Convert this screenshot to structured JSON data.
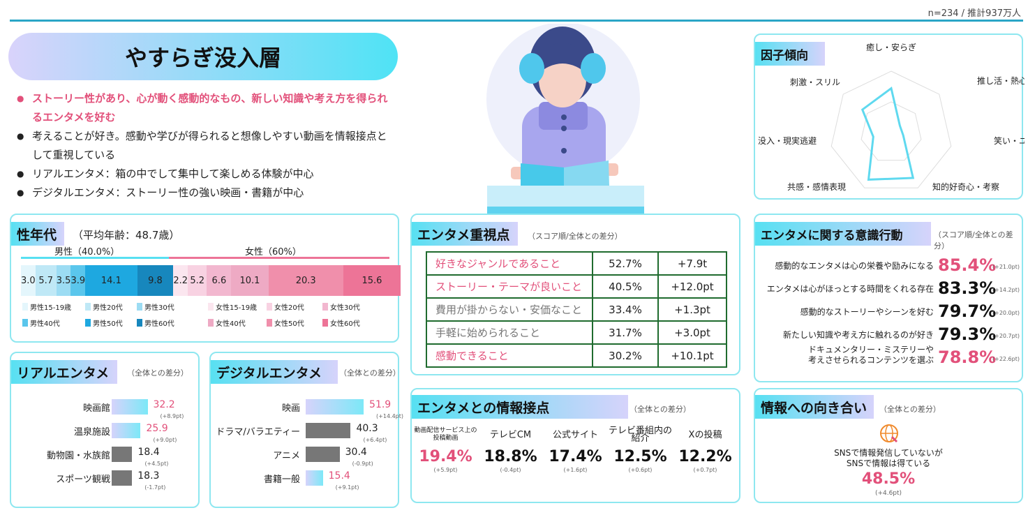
{
  "sample": "n=234 / 推計937万人",
  "title": "やすらぎ没入層",
  "bullets": [
    {
      "text": "ストーリー性があり、心が動く感動的なもの、新しい知識や考え方を得られるエンタメを好む",
      "highlight": true
    },
    {
      "text": "考えることが好き。感動や学びが得られると想像しやすい動画を情報接点として重視している",
      "highlight": false
    },
    {
      "text": "リアルエンタメ：箱の中でして集中して楽しめる体験が中心",
      "highlight": false
    },
    {
      "text": "デジタルエンタメ：ストーリー性の強い映画・書籍が中心",
      "highlight": false
    }
  ],
  "factor": {
    "title": "因子傾向",
    "labels": [
      "癒し・安らぎ",
      "推し活・熱心な応援",
      "笑い・ユーモア",
      "知的好奇心・考察",
      "共感・感情表現",
      "没入・現実逃避",
      "刺激・スリル"
    ],
    "values": [
      0.72,
      0.18,
      0.2,
      0.82,
      0.85,
      0.3,
      0.6
    ]
  },
  "age": {
    "title": "性年代",
    "avg": "（平均年齢：48.7歳）",
    "male": "男性（40.0%）",
    "female": "女性（60%）",
    "segments": [
      {
        "label": "男性15-19歳",
        "value": "3.0",
        "color": "#e4f6fc"
      },
      {
        "label": "男性20代",
        "value": "5.7",
        "color": "#bfe8f6"
      },
      {
        "label": "男性30代",
        "value": "3.5",
        "color": "#9cdcf3"
      },
      {
        "label": "男性40代",
        "value": "3.9",
        "color": "#5ac6ec"
      },
      {
        "label": "男性50代",
        "value": "14.1",
        "color": "#1ea8e0"
      },
      {
        "label": "男性60代",
        "value": "9.8",
        "color": "#1787bd"
      },
      {
        "label": "女性15-19歳",
        "value": "2.2",
        "color": "#fbe6ef"
      },
      {
        "label": "女性20代",
        "value": "5.2",
        "color": "#f8d2e2"
      },
      {
        "label": "女性30代",
        "value": "6.6",
        "color": "#f2b7cf"
      },
      {
        "label": "女性40代",
        "value": "10.1",
        "color": "#eeaac4"
      },
      {
        "label": "女性50代",
        "value": "20.3",
        "color": "#f08fab"
      },
      {
        "label": "女性60代",
        "value": "15.6",
        "color": "#ed7497"
      }
    ]
  },
  "entame": {
    "title": "エンタメ重視点",
    "sub": "（スコア順/全体との差分）",
    "rows": [
      {
        "item": "好きなジャンルであること",
        "score": "52.7%",
        "diff": "+7.9t",
        "hl": true
      },
      {
        "item": "ストーリー・テーマが良いこと",
        "score": "40.5%",
        "diff": "+12.0pt",
        "hl": true
      },
      {
        "item": "費用が掛からない・安価なこと",
        "score": "33.4%",
        "diff": "+1.3pt",
        "hl": false
      },
      {
        "item": "手軽に始められること",
        "score": "31.7%",
        "diff": "+3.0pt",
        "hl": false
      },
      {
        "item": "感動できること",
        "score": "30.2%",
        "diff": "+10.1pt",
        "hl": true
      }
    ]
  },
  "ishiki": {
    "title": "エンタメに関する意識行動",
    "sub": "（スコア順/全体との差分）",
    "rows": [
      {
        "l1": "感動的なエンタメは心の栄養や励みになる",
        "l2": "",
        "score": "85.4%",
        "diff": "(+21.0pt)",
        "hl": true
      },
      {
        "l1": "エンタメは心がほっとする時間をくれる存在",
        "l2": "",
        "score": "83.3%",
        "diff": "(+14.2pt)",
        "hl": false
      },
      {
        "l1": "感動的なストーリーやシーンを好む",
        "l2": "",
        "score": "79.7%",
        "diff": "(+20.0pt)",
        "hl": false
      },
      {
        "l1": "新たしい知識や考え方に触れるのが好き",
        "l2": "",
        "score": "79.3%",
        "diff": "(+20.7pt)",
        "hl": false
      },
      {
        "l1": "ドキュメンタリー・ミステリーや",
        "l2": "考えさせられるコンテンツを選ぶ",
        "score": "78.8%",
        "diff": "(+22.6pt)",
        "hl": true
      }
    ]
  },
  "real": {
    "title": "リアルエンタメ",
    "sub": "（全体との差分）",
    "items": [
      {
        "label": "映画館",
        "value": "32.2",
        "diff": "(+8.9pt)",
        "hl": true,
        "n": 32.2
      },
      {
        "label": "温泉施設",
        "value": "25.9",
        "diff": "(+9.0pt)",
        "hl": true,
        "n": 25.9
      },
      {
        "label": "動物園・水族館",
        "value": "18.4",
        "diff": "(+4.5pt)",
        "hl": false,
        "n": 18.4
      },
      {
        "label": "スポーツ観戦",
        "value": "18.3",
        "diff": "(-1.7pt)",
        "hl": false,
        "n": 18.3
      }
    ]
  },
  "digital": {
    "title": "デジタルエンタメ",
    "sub": "（全体との差分）",
    "items": [
      {
        "label": "映画",
        "value": "51.9",
        "diff": "(+14.4pt)",
        "hl": true,
        "n": 51.9
      },
      {
        "label": "ドラマ/バラエティー",
        "value": "40.3",
        "diff": "(+6.4pt)",
        "hl": false,
        "n": 40.3
      },
      {
        "label": "アニメ",
        "value": "30.4",
        "diff": "(-0.9pt)",
        "hl": false,
        "n": 30.4
      },
      {
        "label": "書籍一般",
        "value": "15.4",
        "diff": "(+9.1pt)",
        "hl": true,
        "n": 15.4
      }
    ]
  },
  "joho": {
    "title": "エンタメとの情報接点",
    "sub": "（全体との差分）",
    "items": [
      {
        "label": "動画配信サービス上の投稿動画",
        "value": "19.4%",
        "diff": "(+5.9pt)",
        "hl": true
      },
      {
        "label": "テレビCM",
        "value": "18.8%",
        "diff": "(-0.4pt)",
        "hl": false
      },
      {
        "label": "公式サイト",
        "value": "17.4%",
        "diff": "(+1.6pt)",
        "hl": false
      },
      {
        "label": "テレビ番組内の紹介",
        "value": "12.5%",
        "diff": "(+0.6pt)",
        "hl": false
      },
      {
        "label": "Xの投稿",
        "value": "12.2%",
        "diff": "(+0.7pt)",
        "hl": false
      }
    ]
  },
  "muki": {
    "title": "情報への向き合い",
    "sub": "（全体との差分）",
    "line1": "SNSで情報発信していないが",
    "line2": "SNSで情報は得ている",
    "value": "48.5%",
    "diff": "(+4.6pt)"
  },
  "colors": {
    "pink": "#e2507a",
    "cyan": "#57e0f2",
    "lavender": "#d6d3fb"
  }
}
